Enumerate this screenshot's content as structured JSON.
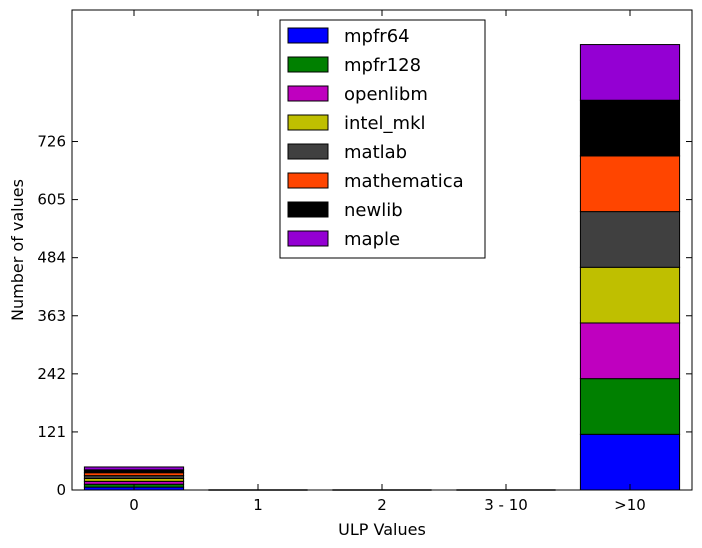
{
  "chart_data": {
    "type": "bar",
    "stacked": true,
    "xlabel": "ULP Values",
    "ylabel": "Number of values",
    "categories": [
      "0",
      "1",
      "2",
      "3 - 10",
      ">10"
    ],
    "yticks": [
      "0",
      "121",
      "242",
      "363",
      "484",
      "605",
      "726"
    ],
    "ylim": [
      0,
      1000
    ],
    "legend_position": "top-center",
    "grid": false,
    "series": [
      {
        "name": "mpfr64",
        "color": "#0000ff",
        "values": [
          6,
          0,
          0,
          0,
          116
        ]
      },
      {
        "name": "mpfr128",
        "color": "#008000",
        "values": [
          6,
          0,
          0,
          0,
          116
        ]
      },
      {
        "name": "openlibm",
        "color": "#bf00bf",
        "values": [
          6,
          0,
          0,
          0,
          116
        ]
      },
      {
        "name": "intel_mkl",
        "color": "#bfbf00",
        "values": [
          6,
          0,
          0,
          0,
          116
        ]
      },
      {
        "name": "matlab",
        "color": "#404040",
        "values": [
          6,
          0,
          0,
          0,
          116
        ]
      },
      {
        "name": "mathematica",
        "color": "#ff4500",
        "values": [
          6,
          0,
          0,
          0,
          116
        ]
      },
      {
        "name": "newlib",
        "color": "#000000",
        "values": [
          6,
          0,
          0,
          0,
          116
        ]
      },
      {
        "name": "maple",
        "color": "#9400d3",
        "values": [
          6,
          0,
          0,
          0,
          116
        ]
      }
    ]
  }
}
